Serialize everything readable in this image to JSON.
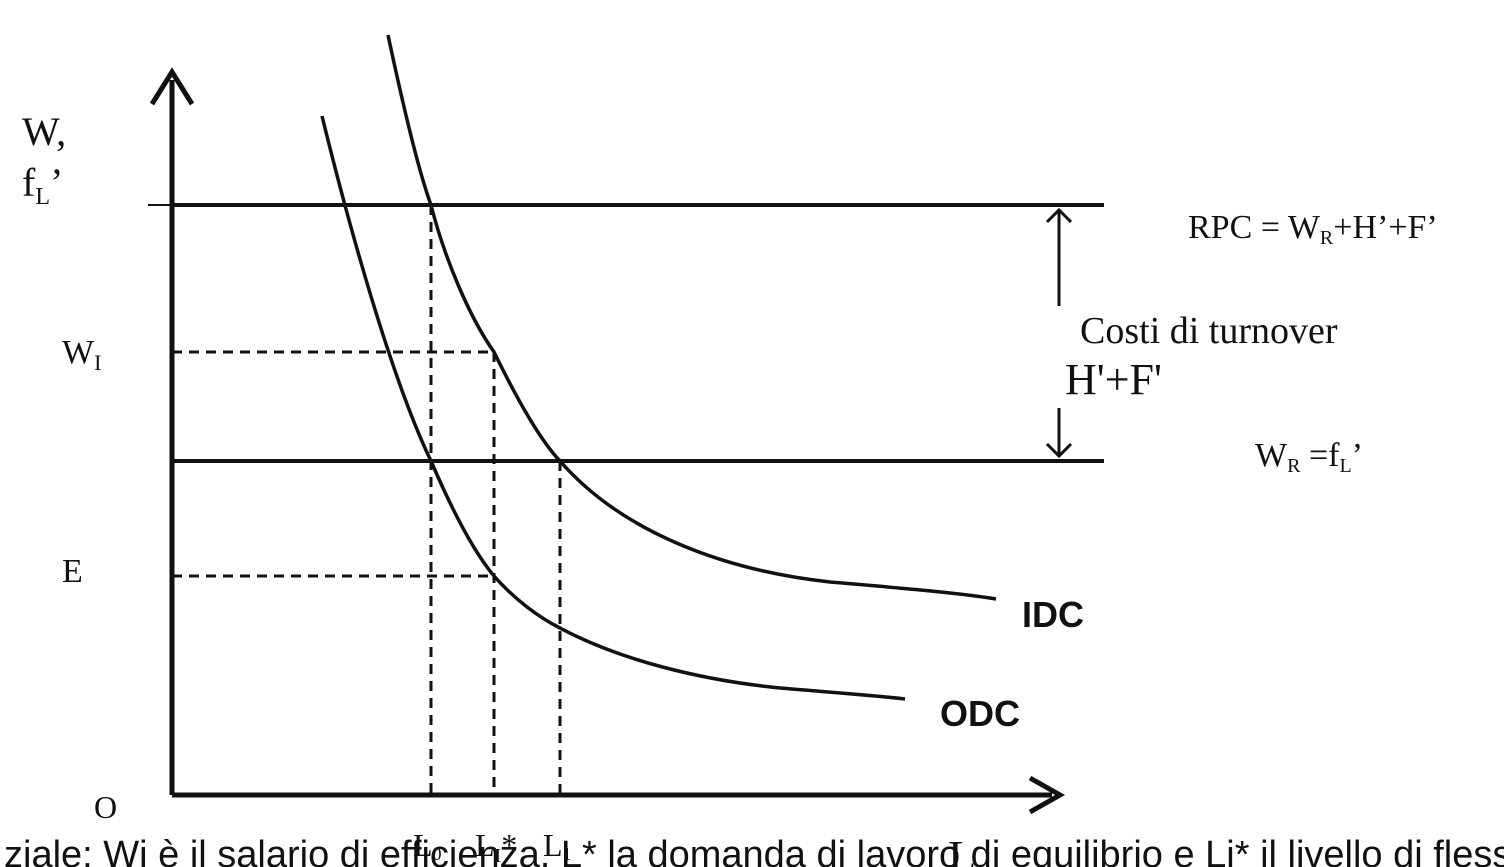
{
  "axes": {
    "y_label_line1": "W,",
    "y_label_line2_main": "f",
    "y_label_line2_sub": "L",
    "y_label_line2_suffix": "’",
    "origin_label": "O",
    "x_label": "L"
  },
  "y_ticks": {
    "wi_main": "W",
    "wi_sub": "I",
    "e_label": "E"
  },
  "x_ticks": {
    "l0_main": "L",
    "l0_sub": "0",
    "li_main": "L",
    "li_sub": "I",
    "li_suffix": "*",
    "l1_main": "L",
    "l1_sub": "1"
  },
  "lines": {
    "rpc": {
      "prefix": "RPC = W",
      "sub": "R",
      "suffix": "+H’+F’"
    },
    "wr": {
      "prefix": "W",
      "sub": "R",
      "middle": " =f",
      "sub2": "L",
      "suffix": "’"
    }
  },
  "annotation": {
    "line1": "Costi di turnover",
    "line2": "H'+F'"
  },
  "curves": {
    "idc_label": "IDC",
    "odc_label": "ODC"
  },
  "footer": {
    "text": "ziale: Wi è il salario di efficienza, L* la domanda di lavoro di equilibrio e Li* il livello di flessibilità ottimale"
  }
}
